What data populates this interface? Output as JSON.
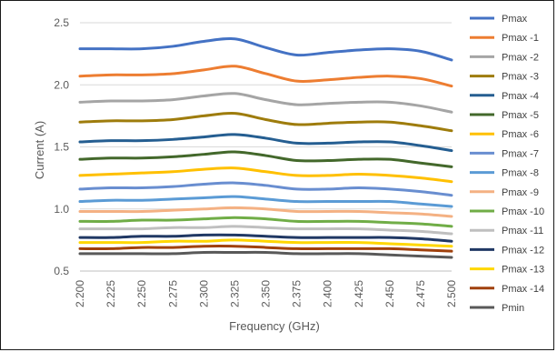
{
  "chart_data": {
    "type": "line",
    "xlabel": "Frequency (GHz)",
    "ylabel": "Current (A)",
    "xlim": [
      2.2,
      2.5
    ],
    "ylim": [
      0.5,
      2.5
    ],
    "xticks": [
      "2.200",
      "2.225",
      "2.250",
      "2.275",
      "2.300",
      "2.325",
      "2.350",
      "2.375",
      "2.400",
      "2.425",
      "2.450",
      "2.475",
      "2.500"
    ],
    "yticks": [
      "0.5",
      "1.0",
      "1.5",
      "2.0",
      "2.5"
    ],
    "grid": "horizontal",
    "legend_position": "right",
    "x": [
      2.2,
      2.225,
      2.25,
      2.275,
      2.3,
      2.325,
      2.35,
      2.375,
      2.4,
      2.425,
      2.45,
      2.475,
      2.5
    ],
    "series": [
      {
        "name": "Pmax",
        "color": "#4472C4",
        "values": [
          2.29,
          2.29,
          2.29,
          2.31,
          2.35,
          2.37,
          2.3,
          2.24,
          2.26,
          2.28,
          2.29,
          2.27,
          2.2
        ]
      },
      {
        "name": "Pmax -1",
        "color": "#ED7D31",
        "values": [
          2.07,
          2.08,
          2.08,
          2.09,
          2.12,
          2.15,
          2.09,
          2.03,
          2.04,
          2.06,
          2.07,
          2.05,
          1.99
        ]
      },
      {
        "name": "Pmax -2",
        "color": "#A5A5A5",
        "values": [
          1.86,
          1.87,
          1.87,
          1.88,
          1.91,
          1.93,
          1.88,
          1.84,
          1.85,
          1.86,
          1.86,
          1.83,
          1.78
        ]
      },
      {
        "name": "Pmax -3",
        "color": "#9E7C0C",
        "values": [
          1.7,
          1.71,
          1.71,
          1.72,
          1.75,
          1.77,
          1.72,
          1.68,
          1.69,
          1.7,
          1.7,
          1.67,
          1.63
        ]
      },
      {
        "name": "Pmax -4",
        "color": "#255E91",
        "values": [
          1.54,
          1.55,
          1.55,
          1.56,
          1.58,
          1.6,
          1.57,
          1.53,
          1.53,
          1.54,
          1.54,
          1.51,
          1.47
        ]
      },
      {
        "name": "Pmax -5",
        "color": "#43682B",
        "values": [
          1.4,
          1.41,
          1.41,
          1.42,
          1.44,
          1.46,
          1.43,
          1.39,
          1.39,
          1.4,
          1.4,
          1.37,
          1.34
        ]
      },
      {
        "name": "Pmax -6",
        "color": "#FFC000",
        "values": [
          1.27,
          1.28,
          1.29,
          1.3,
          1.32,
          1.33,
          1.3,
          1.27,
          1.27,
          1.28,
          1.27,
          1.25,
          1.22
        ]
      },
      {
        "name": "Pmax -7",
        "color": "#698ED0",
        "values": [
          1.16,
          1.17,
          1.17,
          1.18,
          1.2,
          1.21,
          1.19,
          1.16,
          1.16,
          1.17,
          1.16,
          1.14,
          1.11
        ]
      },
      {
        "name": "Pmax -8",
        "color": "#5B9BD5",
        "values": [
          1.06,
          1.07,
          1.07,
          1.08,
          1.09,
          1.1,
          1.08,
          1.06,
          1.06,
          1.06,
          1.06,
          1.04,
          1.02
        ]
      },
      {
        "name": "Pmax -9",
        "color": "#F4B183",
        "values": [
          0.98,
          0.98,
          0.98,
          0.99,
          1.0,
          1.01,
          1.0,
          0.98,
          0.98,
          0.98,
          0.97,
          0.96,
          0.94
        ]
      },
      {
        "name": "Pmax -10",
        "color": "#70AD47",
        "values": [
          0.9,
          0.9,
          0.91,
          0.91,
          0.92,
          0.93,
          0.92,
          0.9,
          0.9,
          0.9,
          0.89,
          0.88,
          0.86
        ]
      },
      {
        "name": "Pmax -11",
        "color": "#BFBFBF",
        "values": [
          0.84,
          0.84,
          0.84,
          0.85,
          0.85,
          0.86,
          0.85,
          0.84,
          0.84,
          0.84,
          0.83,
          0.82,
          0.8
        ]
      },
      {
        "name": "Pmax -12",
        "color": "#203864",
        "values": [
          0.77,
          0.77,
          0.78,
          0.78,
          0.79,
          0.79,
          0.78,
          0.77,
          0.77,
          0.77,
          0.77,
          0.76,
          0.74
        ]
      },
      {
        "name": "Pmax -13",
        "color": "#FFD700",
        "values": [
          0.73,
          0.73,
          0.73,
          0.74,
          0.74,
          0.75,
          0.74,
          0.73,
          0.73,
          0.73,
          0.72,
          0.71,
          0.7
        ]
      },
      {
        "name": "Pmax -14",
        "color": "#A0410D",
        "values": [
          0.68,
          0.68,
          0.69,
          0.69,
          0.7,
          0.7,
          0.69,
          0.68,
          0.68,
          0.68,
          0.68,
          0.67,
          0.66
        ]
      },
      {
        "name": "Pmin",
        "color": "#595959",
        "values": [
          0.64,
          0.64,
          0.64,
          0.64,
          0.65,
          0.65,
          0.65,
          0.64,
          0.64,
          0.64,
          0.63,
          0.62,
          0.61
        ]
      }
    ]
  }
}
